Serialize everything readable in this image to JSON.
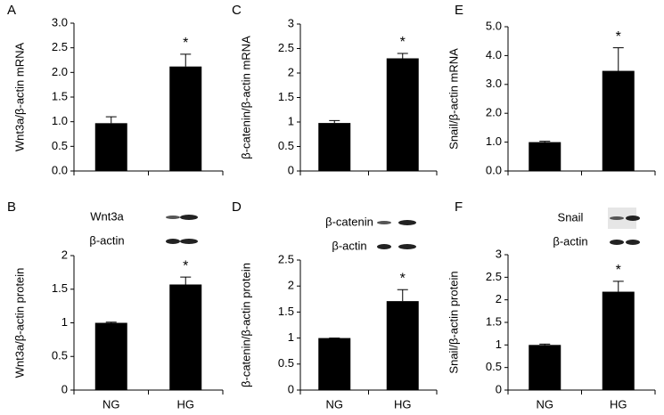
{
  "chart_data": [
    {
      "type": "bar",
      "panel": "A",
      "ylabel": "Wnt3a/β-actin mRNA",
      "categories": [
        null,
        null
      ],
      "values": [
        0.97,
        2.12
      ],
      "errors": [
        0.13,
        0.25
      ],
      "annotation": "*",
      "color": "#000000",
      "ylim": [
        0,
        3
      ],
      "yticks": [
        {
          "value": 0,
          "label": "0.0"
        },
        {
          "value": 0.5,
          "label": "0.5"
        },
        {
          "value": 1,
          "label": "1.0"
        },
        {
          "value": 1.5,
          "label": "1.5"
        },
        {
          "value": 2,
          "label": "2.0"
        },
        {
          "value": 2.5,
          "label": "2.5"
        },
        {
          "value": 3,
          "label": "3.0"
        }
      ]
    },
    {
      "type": "bar",
      "panel": "C",
      "ylabel": "β-catenin/β-actin mRNA",
      "categories": [
        null,
        null
      ],
      "values": [
        0.98,
        2.3
      ],
      "errors": [
        0.05,
        0.1
      ],
      "annotation": "*",
      "color": "#000000",
      "ylim": [
        0,
        3
      ],
      "yticks": [
        0,
        0.5,
        1,
        1.5,
        2,
        2.5,
        3
      ]
    },
    {
      "type": "bar",
      "panel": "E",
      "ylabel": "Snail/β-actin mRNA",
      "categories": [
        null,
        null
      ],
      "values": [
        1.0,
        3.47
      ],
      "errors": [
        0.03,
        0.8
      ],
      "annotation": "*",
      "color": "#000000",
      "ylim": [
        0,
        5
      ],
      "yticks": [
        {
          "value": 0,
          "label": "0.0"
        },
        {
          "value": 1,
          "label": "1.0"
        },
        {
          "value": 2,
          "label": "2.0"
        },
        {
          "value": 3,
          "label": "3.0"
        },
        {
          "value": 4,
          "label": "4.0"
        },
        {
          "value": 5,
          "label": "5.0"
        }
      ]
    },
    {
      "type": "bar",
      "panel": "B",
      "ylabel": "Wnt3a/β-actin protein",
      "categories": [
        "NG",
        "HG"
      ],
      "values": [
        1.0,
        1.57
      ],
      "errors": [
        0.01,
        0.11
      ],
      "annotation": "*",
      "color": "#000000",
      "blot_labels": [
        "Wnt3a",
        "β-actin"
      ],
      "ylim": [
        0,
        2
      ],
      "yticks": [
        0,
        0.5,
        1,
        1.5,
        2
      ]
    },
    {
      "type": "bar",
      "panel": "D",
      "ylabel": "β-catenin/β-actin protein",
      "categories": [
        "NG",
        "HG"
      ],
      "values": [
        1.0,
        1.71
      ],
      "errors": [
        0,
        0.22
      ],
      "annotation": "*",
      "color": "#000000",
      "blot_labels": [
        "β-catenin",
        "β-actin"
      ],
      "ylim": [
        0,
        2.5
      ],
      "yticks": [
        0,
        0.5,
        1,
        1.5,
        2,
        2.5
      ]
    },
    {
      "type": "bar",
      "panel": "F",
      "ylabel": "Snail/β-actin protein",
      "categories": [
        "NG",
        "HG"
      ],
      "values": [
        1.0,
        2.18
      ],
      "errors": [
        0.02,
        0.23
      ],
      "annotation": "*",
      "color": "#000000",
      "blot_labels": [
        "Snail",
        "β-actin"
      ],
      "ylim": [
        0,
        3
      ],
      "yticks": [
        0,
        0.5,
        1,
        1.5,
        2,
        2.5,
        3
      ]
    }
  ]
}
